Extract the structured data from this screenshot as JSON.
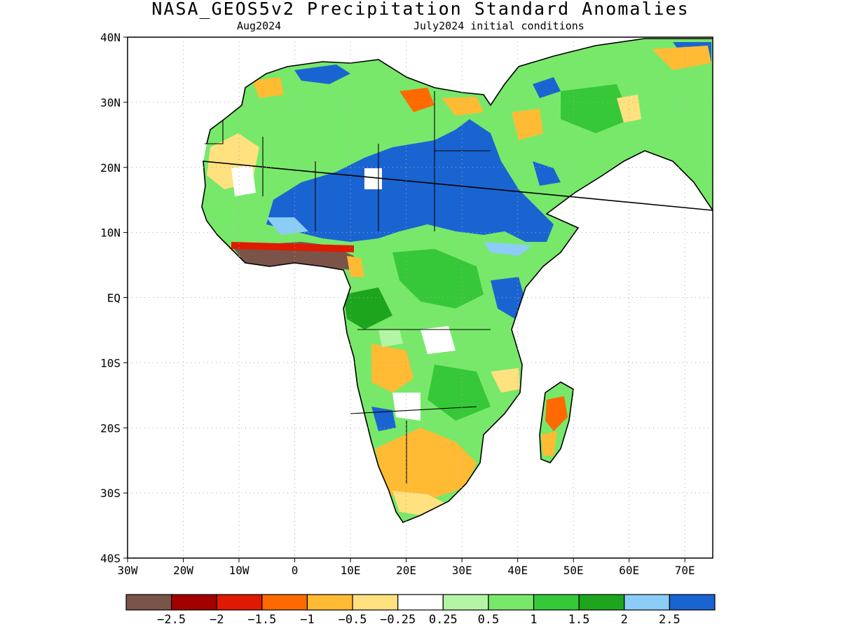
{
  "title": "NASA_GEOS5v2 Precipitation Standard Anomalies",
  "subtitle_left": "Aug2024",
  "subtitle_right": "July2024 initial conditions",
  "map": {
    "lat_labels": [
      "40N",
      "30N",
      "20N",
      "10N",
      "EQ",
      "10S",
      "20S",
      "30S",
      "40S"
    ],
    "lon_labels": [
      "30W",
      "20W",
      "10W",
      "0",
      "10E",
      "20E",
      "30E",
      "40E",
      "50E",
      "60E",
      "70E"
    ],
    "extent": {
      "lon": [
        -30,
        75
      ],
      "lat": [
        -40,
        40
      ]
    }
  },
  "colorbar": {
    "colors": [
      "#7b5449",
      "#a30000",
      "#e01a00",
      "#ff6a00",
      "#ffbb33",
      "#ffe17f",
      "#ffffff",
      "#b4f5a4",
      "#78e86a",
      "#36c838",
      "#1ea51e",
      "#8ccdf7",
      "#1a64d2"
    ],
    "labels": [
      "-2.5",
      "-2",
      "-1.5",
      "-1",
      "-0.5",
      "-0.25",
      "0.25",
      "0.5",
      "1",
      "1.5",
      "2",
      "2.5"
    ]
  }
}
